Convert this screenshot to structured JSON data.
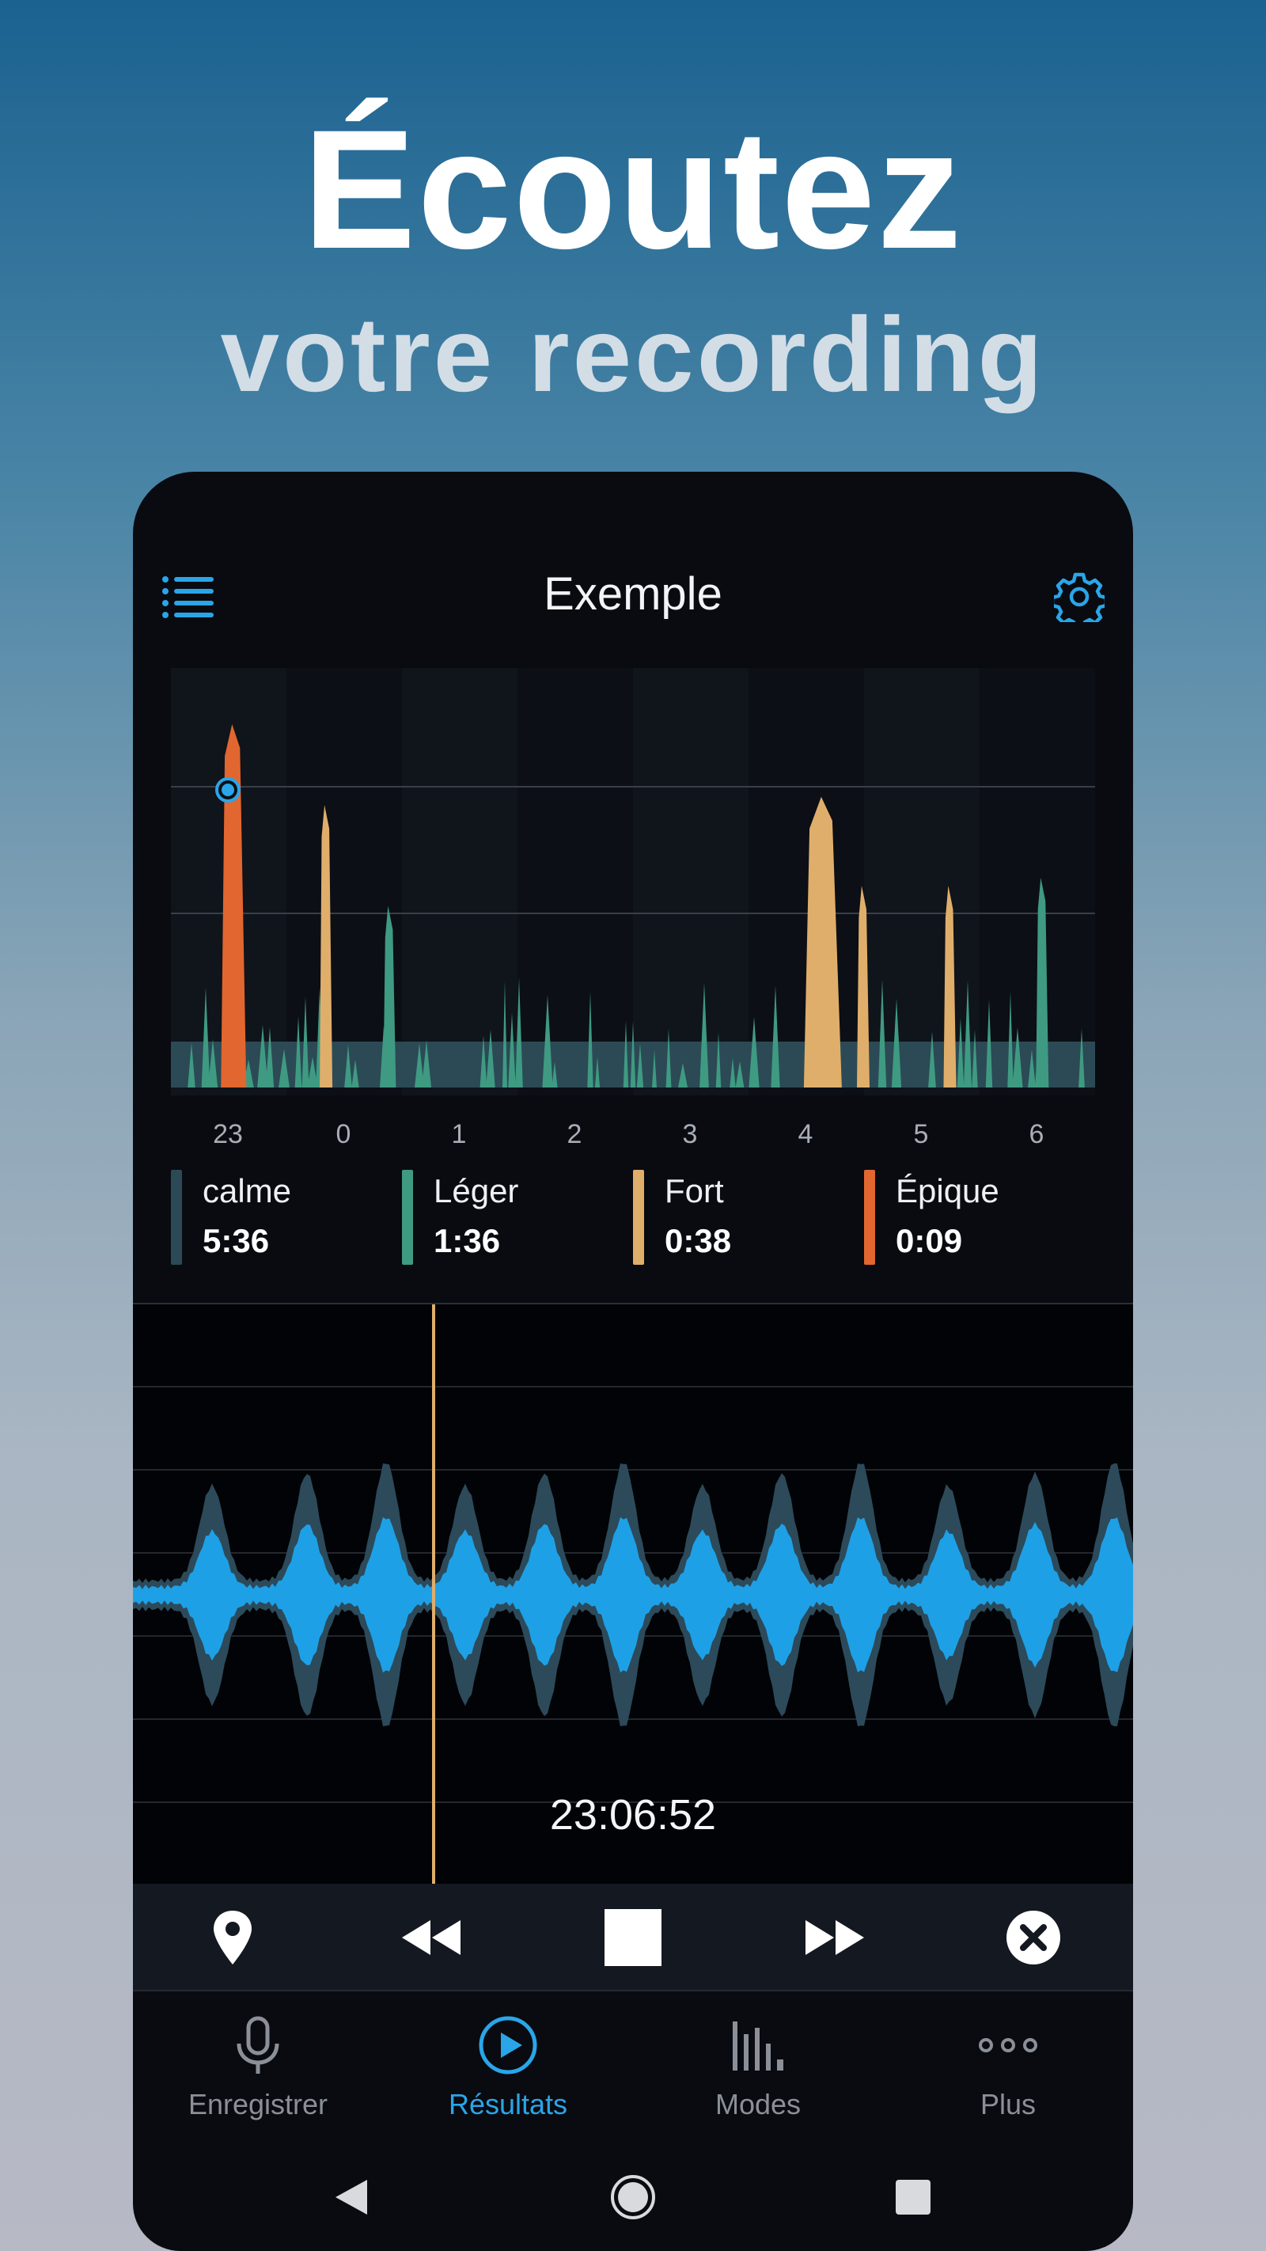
{
  "hero": {
    "title": "Écoutez",
    "subtitle": "votre recording"
  },
  "app": {
    "title": "Exemple",
    "menu_icon": "list-icon",
    "settings_icon": "gear-icon"
  },
  "colors": {
    "accent": "#2aa5e8",
    "calme": "#2b4a55",
    "leger": "#3f9a82",
    "fort": "#e0ae6b",
    "epique": "#e2662f"
  },
  "chart_data": {
    "type": "area",
    "x_tick_labels": [
      "23",
      "0",
      "1",
      "2",
      "3",
      "4",
      "5",
      "6"
    ],
    "series": [
      {
        "name": "calme",
        "color": "#2b4a55"
      },
      {
        "name": "Léger",
        "color": "#3f9a82"
      },
      {
        "name": "Fort",
        "color": "#e0ae6b"
      },
      {
        "name": "Épique",
        "color": "#e2662f"
      }
    ],
    "peaks": [
      {
        "x": 23.05,
        "level": 0.9,
        "type": "Épique"
      },
      {
        "x": 23.85,
        "level": 0.7,
        "type": "Fort"
      },
      {
        "x": 0.4,
        "level": 0.45,
        "type": "Léger"
      },
      {
        "x": 4.15,
        "level": 0.72,
        "type": "Fort"
      },
      {
        "x": 4.5,
        "level": 0.5,
        "type": "Fort"
      },
      {
        "x": 5.25,
        "level": 0.5,
        "type": "Fort"
      },
      {
        "x": 6.05,
        "level": 0.52,
        "type": "Léger"
      }
    ],
    "grid": true
  },
  "legend": [
    {
      "name": "calme",
      "value": "5:36",
      "color": "#2b4a55"
    },
    {
      "name": "Léger",
      "value": "1:36",
      "color": "#3f9a82"
    },
    {
      "name": "Fort",
      "value": "0:38",
      "color": "#e0ae6b"
    },
    {
      "name": "Épique",
      "value": "0:09",
      "color": "#e2662f"
    }
  ],
  "waveform": {
    "time": "23:06:52"
  },
  "transport": {
    "buttons": [
      "location-pin-icon",
      "rewind-icon",
      "stop-icon",
      "fast-forward-icon",
      "close-circle-icon"
    ]
  },
  "nav": {
    "items": [
      {
        "label": "Enregistrer",
        "icon": "microphone-icon",
        "active": false
      },
      {
        "label": "Résultats",
        "icon": "play-circle-icon",
        "active": true
      },
      {
        "label": "Modes",
        "icon": "bars-icon",
        "active": false
      },
      {
        "label": "Plus",
        "icon": "more-dots-icon",
        "active": false
      }
    ]
  }
}
